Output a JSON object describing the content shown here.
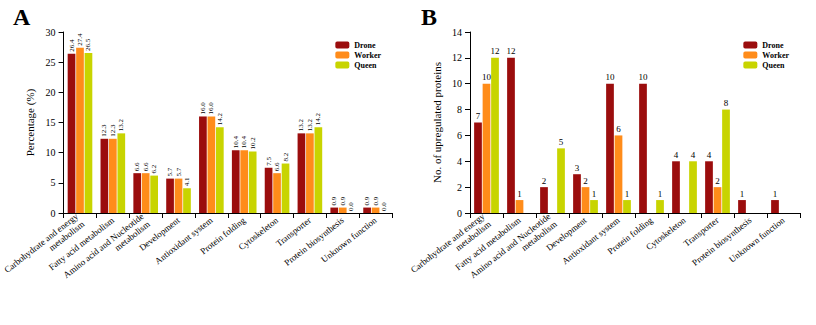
{
  "chart_data": [
    {
      "type": "bar",
      "title": "A",
      "y_label": "Percentage (%)",
      "categories": [
        "Carbohydrate and energy\nmetabolism",
        "Fatty acid metabolism",
        "Amino acid and Nucleotide\nmetabolism",
        "Development",
        "Antioxidant system",
        "Protein folding",
        "Cytoskeleton",
        "Transporter",
        "Protein biosynthesis",
        "Unknown function"
      ],
      "series": [
        {
          "name": "Drone",
          "color": "#9b0d0d",
          "values": [
            26.4,
            12.3,
            6.6,
            5.7,
            16.0,
            10.4,
            7.5,
            13.2,
            0.9,
            0.9
          ],
          "value_labels": [
            "26.4",
            "12.3",
            "6.6",
            "5.7",
            "16.0",
            "10.4",
            "7.5",
            "13.2",
            "0.9",
            "0.9"
          ]
        },
        {
          "name": "Worker",
          "color": "#ff8c1a",
          "values": [
            27.4,
            12.3,
            6.6,
            5.7,
            16.0,
            10.4,
            6.6,
            13.2,
            0.9,
            0.9
          ],
          "value_labels": [
            "27.4",
            "12.3",
            "6.6",
            "5.7",
            "16.0",
            "10.4",
            "6.6",
            "13.2",
            "0.9",
            "0.9"
          ]
        },
        {
          "name": "Queen",
          "color": "#c8d400",
          "values": [
            26.5,
            13.2,
            6.2,
            4.1,
            14.2,
            10.2,
            8.2,
            14.2,
            0.0,
            0.0
          ],
          "value_labels": [
            "26.5",
            "13.2",
            "6.2",
            "4.1",
            "14.2",
            "10.2",
            "8.2",
            "14.2",
            "0.0",
            "0.0"
          ]
        }
      ],
      "ylim": [
        0,
        30
      ],
      "yticks": [
        0,
        5,
        10,
        15,
        20,
        25,
        30
      ],
      "grid": false,
      "legend": "upper right",
      "data_labels": true
    },
    {
      "type": "bar",
      "title": "B",
      "y_label": "No. of upregulated proteins",
      "categories": [
        "Carbohydrate and energy\nmetabolism",
        "Fatty acid metabolism",
        "Amino acid and Nucleotide\nmetabolism",
        "Development",
        "Antioxidant system",
        "Protein folding",
        "Cytoskeleton",
        "Transporter",
        "Protein biosynthesis",
        "Unknown function"
      ],
      "series": [
        {
          "name": "Drone",
          "color": "#9b0d0d",
          "values": [
            7,
            12,
            2,
            3,
            10,
            10,
            4,
            4,
            1,
            1
          ]
        },
        {
          "name": "Worker",
          "color": "#ff8c1a",
          "values": [
            10,
            1,
            null,
            2,
            6,
            null,
            null,
            2,
            null,
            null
          ]
        },
        {
          "name": "Queen",
          "color": "#c8d400",
          "values": [
            12,
            null,
            5,
            1,
            1,
            1,
            4,
            8,
            null,
            null
          ]
        }
      ],
      "ylim": [
        0,
        14
      ],
      "yticks": [
        0,
        2,
        4,
        6,
        8,
        10,
        12,
        14
      ],
      "grid": false,
      "legend": "upper right",
      "data_labels": true
    }
  ]
}
